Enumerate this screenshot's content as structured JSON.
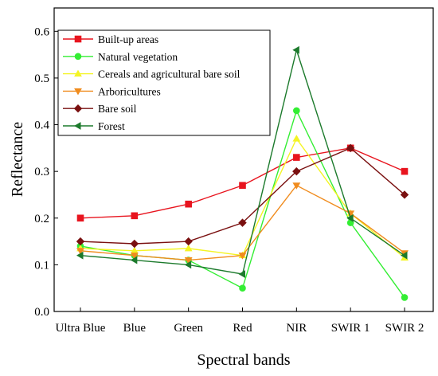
{
  "chart_data": {
    "type": "line",
    "title": "",
    "xlabel": "Spectral bands",
    "ylabel": "Reflectance",
    "categories": [
      "Ultra Blue",
      "Blue",
      "Green",
      "Red",
      "NIR",
      "SWIR 1",
      "SWIR 2"
    ],
    "ylim": [
      0,
      0.65
    ],
    "yticks": [
      "0.0",
      "0.1",
      "0.2",
      "0.3",
      "0.4",
      "0.5",
      "0.6"
    ],
    "grid": false,
    "legend_position": "top-left",
    "series": [
      {
        "name": "Built-up areas",
        "color": "#e8141e",
        "marker": "square",
        "values": [
          0.2,
          0.205,
          0.23,
          0.27,
          0.33,
          0.35,
          0.3
        ]
      },
      {
        "name": "Natural vegetation",
        "color": "#33ee33",
        "marker": "circle",
        "values": [
          0.14,
          0.12,
          0.11,
          0.05,
          0.43,
          0.19,
          0.03
        ]
      },
      {
        "name": "Cereals and agricultural bare soil",
        "color": "#f4f424",
        "marker": "triangle-up",
        "values": [
          0.135,
          0.13,
          0.135,
          0.12,
          0.37,
          0.21,
          0.115
        ]
      },
      {
        "name": "Arboricultures",
        "color": "#f08c1e",
        "marker": "triangle-down",
        "values": [
          0.13,
          0.12,
          0.11,
          0.12,
          0.27,
          0.21,
          0.125
        ]
      },
      {
        "name": "Bare soil",
        "color": "#7a1010",
        "marker": "diamond",
        "values": [
          0.15,
          0.145,
          0.15,
          0.19,
          0.3,
          0.35,
          0.25
        ]
      },
      {
        "name": "Forest",
        "color": "#1c7a2c",
        "marker": "triangle-left",
        "values": [
          0.12,
          0.11,
          0.1,
          0.08,
          0.56,
          0.2,
          0.12
        ]
      }
    ]
  }
}
